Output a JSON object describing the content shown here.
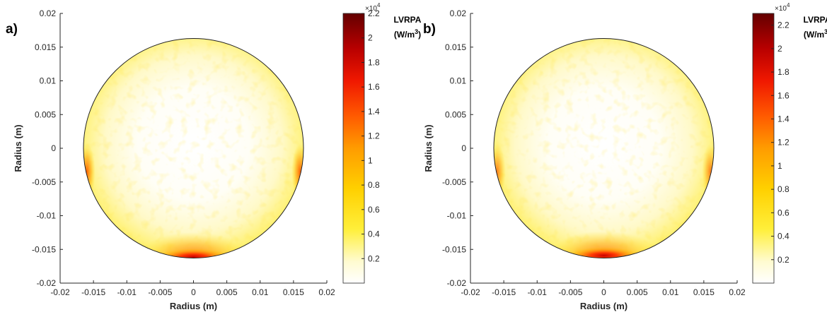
{
  "chart_data": [
    {
      "type": "heatmap",
      "panel_label": "a)",
      "xlabel": "Radius (m)",
      "ylabel": "Radius (m)",
      "xlim": [
        -0.02,
        0.02
      ],
      "ylim": [
        -0.02,
        0.02
      ],
      "xticks": [
        "-0.02",
        "-0.015",
        "-0.01",
        "-0.005",
        "0",
        "0.005",
        "0.01",
        "0.015",
        "0.02"
      ],
      "yticks": [
        "0.02",
        "0.015",
        "0.01",
        "0.005",
        "0",
        "-0.005",
        "-0.01",
        "-0.015",
        "-0.02"
      ],
      "domain_radius": 0.0165,
      "colorbar": {
        "label_line1": "LVRPA",
        "label_line2": "(W/m",
        "label_sup": "3",
        "label_close": ")",
        "multiplier_base": "×10",
        "multiplier_exp": "4",
        "range": [
          0,
          2.2
        ],
        "ticks": [
          "0.2",
          "0.4",
          "0.6",
          "0.8",
          "1",
          "1.2",
          "1.4",
          "1.6",
          "1.8",
          "2",
          "2.2"
        ]
      },
      "hotspots": [
        {
          "x": 0.0,
          "y": -0.0157,
          "value": 2.1
        },
        {
          "x": -0.016,
          "y": -0.0035,
          "value": 1.0
        },
        {
          "x": 0.016,
          "y": -0.0035,
          "value": 1.0
        }
      ]
    },
    {
      "type": "heatmap",
      "panel_label": "b)",
      "xlabel": "Radius (m)",
      "ylabel": "Radius (m)",
      "xlim": [
        -0.02,
        0.02
      ],
      "ylim": [
        -0.02,
        0.02
      ],
      "xticks": [
        "-0.02",
        "-0.015",
        "-0.01",
        "-0.005",
        "0",
        "0.005",
        "0.01",
        "0.015",
        "0.02"
      ],
      "yticks": [
        "0.02",
        "0.015",
        "0.01",
        "0.005",
        "0",
        "-0.005",
        "-0.01",
        "-0.015",
        "-0.02"
      ],
      "domain_radius": 0.0165,
      "colorbar": {
        "label_line1": "LVRPA",
        "label_line2": "(W/m",
        "label_sup": "3",
        "label_close": ")",
        "multiplier_base": "×10",
        "multiplier_exp": "4",
        "range": [
          0,
          2.3
        ],
        "ticks": [
          "0.2",
          "0.4",
          "0.6",
          "0.8",
          "1",
          "1.2",
          "1.4",
          "1.6",
          "1.8",
          "2",
          "2.2"
        ]
      },
      "hotspots": [
        {
          "x": 0.0,
          "y": -0.0155,
          "value": 2.0
        },
        {
          "x": -0.016,
          "y": -0.0035,
          "value": 0.8
        },
        {
          "x": 0.016,
          "y": -0.0035,
          "value": 0.8
        }
      ]
    }
  ]
}
